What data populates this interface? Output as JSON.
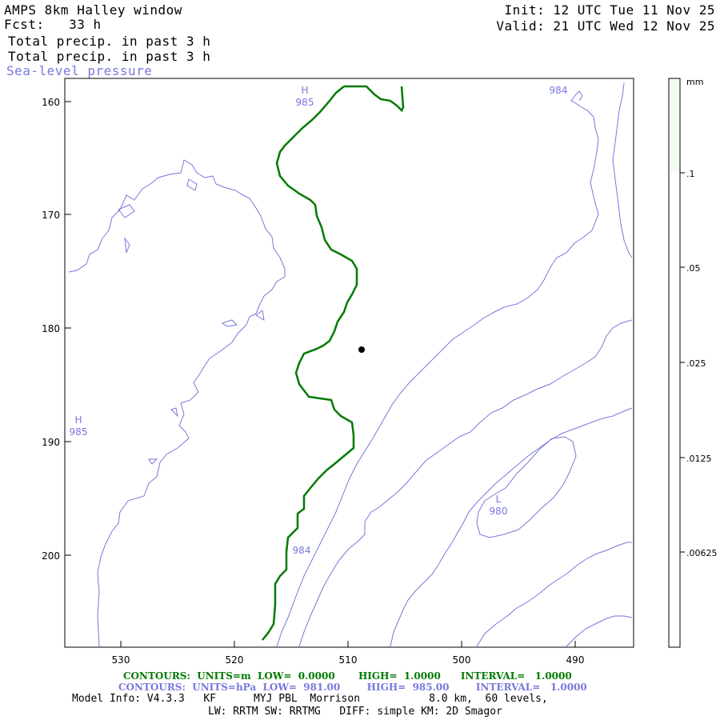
{
  "header": {
    "title": "AMPS 8km Halley window",
    "forecast": "Fcst:   33 h",
    "field1": "Total precip. in past 3 h",
    "field2": "Total precip. in past 3 h",
    "field3": "Sea-level pressure",
    "init": "Init: 12 UTC Tue 11 Nov 25",
    "valid": "Valid: 21 UTC Wed 12 Nov 25"
  },
  "map": {
    "y_ticks": [
      "160",
      "170",
      "180",
      "190",
      "200"
    ],
    "x_ticks": [
      "530",
      "520",
      "510",
      "500",
      "490"
    ],
    "pressure_labels": [
      {
        "text": "H",
        "sub": "985"
      },
      {
        "text": "984",
        "sub": ""
      },
      {
        "text": "H",
        "sub": "985"
      },
      {
        "text": "L",
        "sub": "980"
      },
      {
        "text": "984",
        "sub": ""
      }
    ]
  },
  "colorbar": {
    "unit": "mm",
    "labels": [
      ".1",
      ".05",
      ".025",
      ".0125",
      ".00625"
    ]
  },
  "footer": {
    "contours_precip": "CONTOURS:  UNITS=m  LOW=  0.0000       HIGH=  1.0000      INTERVAL=   1.0000",
    "contours_slp": "CONTOURS:  UNITS=hPa  LOW=  981.00        HIGH=  985.00        INTERVAL=   1.0000",
    "model_info": "Model Info: V4.3.3   KF      MYJ PBL  Morrison           8.0 km,  60 levels,",
    "model_info2": "LW: RRTM SW: RRTMG   DIFF: simple KM: 2D Smagor"
  },
  "colors": {
    "precip_contour": "#007a00",
    "slp_contour": "#7777dd",
    "colorbar_fill": "#f2fbf2"
  }
}
